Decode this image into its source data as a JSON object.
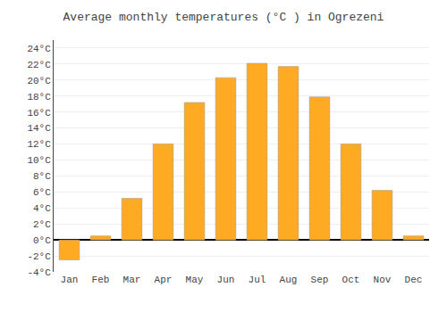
{
  "chart_data": {
    "type": "bar",
    "title": "Average monthly temperatures (°C ) in Ogrezeni",
    "categories": [
      "Jan",
      "Feb",
      "Mar",
      "Apr",
      "May",
      "Jun",
      "Jul",
      "Aug",
      "Sep",
      "Oct",
      "Nov",
      "Dec"
    ],
    "values": [
      -2.5,
      0.5,
      5.2,
      12.0,
      17.2,
      20.3,
      22.1,
      21.7,
      17.9,
      12.0,
      6.2,
      0.5
    ],
    "color": "#FFAA22",
    "ylim": [
      -4,
      25
    ],
    "yticks": [
      {
        "value": -4,
        "label": "-4°C"
      },
      {
        "value": -2,
        "label": "-2°C"
      },
      {
        "value": 0,
        "label": "0°C"
      },
      {
        "value": 2,
        "label": "2°C"
      },
      {
        "value": 4,
        "label": "4°C"
      },
      {
        "value": 6,
        "label": "6°C"
      },
      {
        "value": 8,
        "label": "8°C"
      },
      {
        "value": 10,
        "label": "10°C"
      },
      {
        "value": 12,
        "label": "12°C"
      },
      {
        "value": 14,
        "label": "14°C"
      },
      {
        "value": 16,
        "label": "16°C"
      },
      {
        "value": 18,
        "label": "18°C"
      },
      {
        "value": 20,
        "label": "20°C"
      },
      {
        "value": 22,
        "label": "22°C"
      },
      {
        "value": 24,
        "label": "24°C"
      }
    ],
    "grid": true
  }
}
